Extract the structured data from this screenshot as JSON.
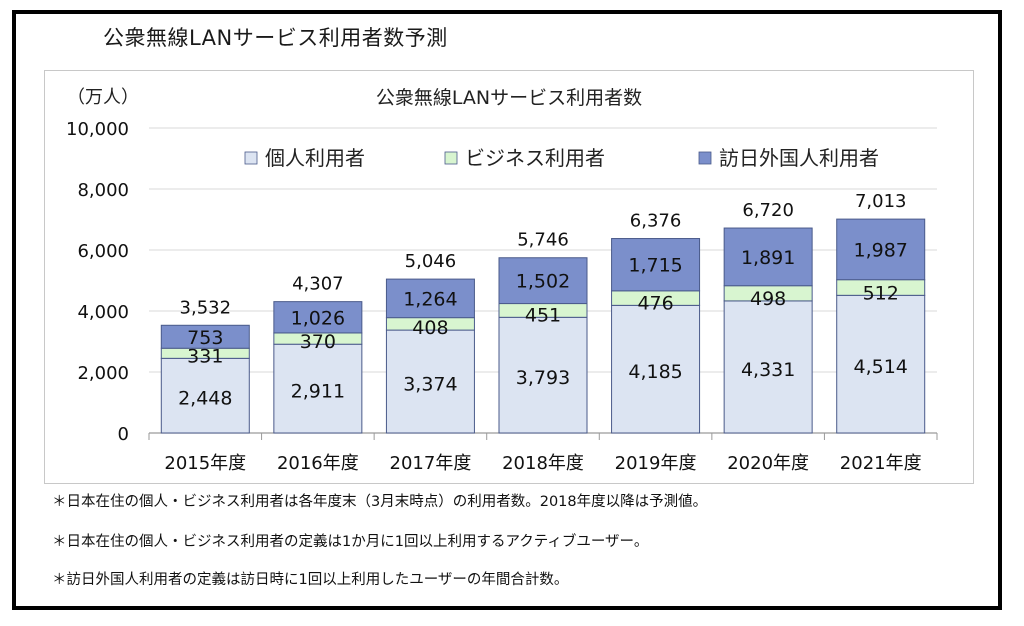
{
  "outer_title": "公衆無線LANサービス利用者数予測",
  "notes": [
    "＊日本在住の個人・ビジネス利用者は各年度末（3月末時点）の利用者数。2018年度以降は予測値。",
    "＊日本在住の個人・ビジネス利用者の定義は1か月に1回以上利用するアクティブユーザー。",
    "＊訪日外国人利用者の定義は訪日時に1回以上利用したユーザーの年間合計数。"
  ],
  "colors": {
    "individual": "#dce4f2",
    "business": "#d8f5d0",
    "foreign": "#7b8fcb",
    "stroke": "#4a5a8a",
    "grid": "#d9d9d9"
  },
  "chart_data": {
    "type": "bar",
    "stacked": true,
    "title": "公衆無線LANサービス利用者数",
    "unit_label": "（万人）",
    "categories": [
      "2015年度",
      "2016年度",
      "2017年度",
      "2018年度",
      "2019年度",
      "2020年度",
      "2021年度"
    ],
    "series": [
      {
        "name": "個人利用者",
        "values": [
          2448,
          2911,
          3374,
          3793,
          4185,
          4331,
          4514
        ]
      },
      {
        "name": "ビジネス利用者",
        "values": [
          331,
          370,
          408,
          451,
          476,
          498,
          512
        ]
      },
      {
        "name": "訪日外国人利用者",
        "values": [
          753,
          1026,
          1264,
          1502,
          1715,
          1891,
          1987
        ]
      }
    ],
    "totals": [
      3532,
      4307,
      5046,
      5746,
      6376,
      6720,
      7013
    ],
    "ylim": [
      0,
      10000
    ],
    "yticks": [
      0,
      2000,
      4000,
      6000,
      8000,
      10000
    ],
    "ytick_labels": [
      "0",
      "2,000",
      "4,000",
      "6,000",
      "8,000",
      "10,000"
    ],
    "grid": true,
    "legend_position": "top"
  }
}
